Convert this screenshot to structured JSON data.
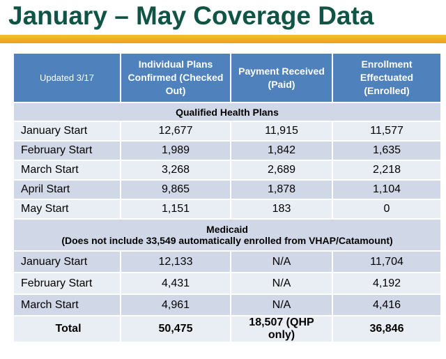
{
  "title": "January – May Coverage Data",
  "table": {
    "header": [
      "Updated 3/17",
      "Individual Plans Confirmed (Checked Out)",
      "Payment Received (Paid)",
      "Enrollment Effectuated (Enrolled)"
    ],
    "sections": [
      {
        "title": "Qualified Health Plans",
        "rows": [
          [
            "January Start",
            "12,677",
            "11,915",
            "11,577"
          ],
          [
            "February Start",
            "1,989",
            "1,842",
            "1,635"
          ],
          [
            "March Start",
            "3,268",
            "2,689",
            "2,218"
          ],
          [
            "April Start",
            "9,865",
            "1,878",
            "1,104"
          ],
          [
            "May Start",
            "1,151",
            "183",
            "0"
          ]
        ]
      },
      {
        "title": "Medicaid",
        "note": "(Does not include 33,549 automatically enrolled from VHAP/Catamount)",
        "rows": [
          [
            "January Start",
            "12,133",
            "N/A",
            "11,704"
          ],
          [
            "February Start",
            "4,431",
            "N/A",
            "4,192"
          ],
          [
            "March Start",
            "4,961",
            "N/A",
            "4,416"
          ]
        ]
      }
    ],
    "total": [
      "Total",
      "50,475",
      "18,507 (QHP only)",
      "36,846"
    ]
  }
}
